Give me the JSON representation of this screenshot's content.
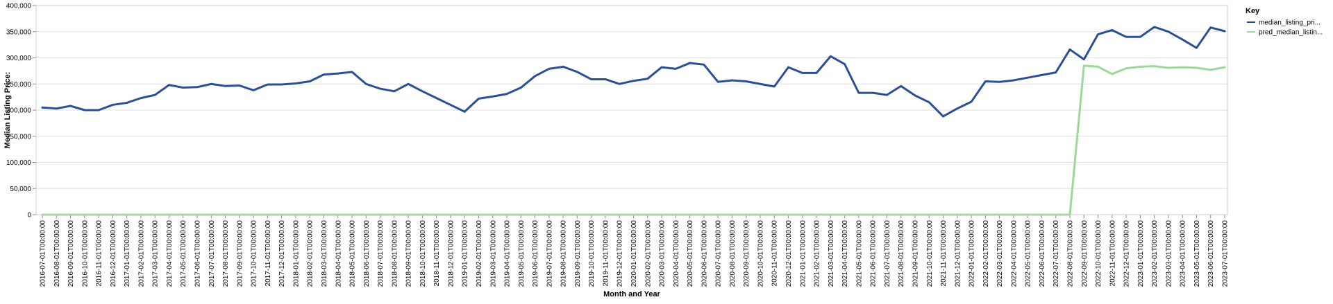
{
  "chart_data": {
    "type": "line",
    "xlabel": "Month and Year",
    "ylabel": "Median Listing Price:",
    "ylim": [
      0,
      400000
    ],
    "yticks": [
      "0",
      "50,000",
      "100,000",
      "150,000",
      "200,000",
      "250,000",
      "300,000",
      "350,000",
      "400,000"
    ],
    "ytick_values": [
      0,
      50000,
      100000,
      150000,
      200000,
      250000,
      300000,
      350000,
      400000
    ],
    "grid": true,
    "legend": {
      "title": "Key",
      "position": "top-right"
    },
    "categories": [
      "2016-07-01T00:00:00",
      "2016-08-01T00:00:00",
      "2016-09-01T00:00:00",
      "2016-10-01T00:00:00",
      "2016-11-01T00:00:00",
      "2016-12-01T00:00:00",
      "2017-01-01T00:00:00",
      "2017-02-01T00:00:00",
      "2017-03-01T00:00:00",
      "2017-04-01T00:00:00",
      "2017-05-01T00:00:00",
      "2017-06-01T00:00:00",
      "2017-07-01T00:00:00",
      "2017-08-01T00:00:00",
      "2017-09-01T00:00:00",
      "2017-10-01T00:00:00",
      "2017-11-01T00:00:00",
      "2017-12-01T00:00:00",
      "2018-01-01T00:00:00",
      "2018-02-01T00:00:00",
      "2018-03-01T00:00:00",
      "2018-04-01T00:00:00",
      "2018-05-01T00:00:00",
      "2018-06-01T00:00:00",
      "2018-07-01T00:00:00",
      "2018-08-01T00:00:00",
      "2018-09-01T00:00:00",
      "2018-10-01T00:00:00",
      "2018-11-01T00:00:00",
      "2018-12-01T00:00:00",
      "2019-01-01T00:00:00",
      "2019-02-01T00:00:00",
      "2019-03-01T00:00:00",
      "2019-04-01T00:00:00",
      "2019-05-01T00:00:00",
      "2019-06-01T00:00:00",
      "2019-07-01T00:00:00",
      "2019-08-01T00:00:00",
      "2019-09-01T00:00:00",
      "2019-10-01T00:00:00",
      "2019-11-01T00:00:00",
      "2019-12-01T00:00:00",
      "2020-01-01T00:00:00",
      "2020-02-01T00:00:00",
      "2020-03-01T00:00:00",
      "2020-04-01T00:00:00",
      "2020-05-01T00:00:00",
      "2020-06-01T00:00:00",
      "2020-07-01T00:00:00",
      "2020-08-01T00:00:00",
      "2020-09-01T00:00:00",
      "2020-10-01T00:00:00",
      "2020-11-01T00:00:00",
      "2020-12-01T00:00:00",
      "2021-01-01T00:00:00",
      "2021-02-01T00:00:00",
      "2021-03-01T00:00:00",
      "2021-04-01T00:00:00",
      "2021-05-01T00:00:00",
      "2021-06-01T00:00:00",
      "2021-07-01T00:00:00",
      "2021-08-01T00:00:00",
      "2021-09-01T00:00:00",
      "2021-10-01T00:00:00",
      "2021-11-01T00:00:00",
      "2021-12-01T00:00:00",
      "2022-01-01T00:00:00",
      "2022-02-01T00:00:00",
      "2022-03-01T00:00:00",
      "2022-04-01T00:00:00",
      "2022-05-01T00:00:00",
      "2022-06-01T00:00:00",
      "2022-07-01T00:00:00",
      "2022-08-01T00:00:00",
      "2022-09-01T00:00:00",
      "2022-10-01T00:00:00",
      "2022-11-01T00:00:00",
      "2022-12-01T00:00:00",
      "2023-01-01T00:00:00",
      "2023-02-01T00:00:00",
      "2023-03-01T00:00:00",
      "2023-04-01T00:00:00",
      "2023-05-01T00:00:00",
      "2023-06-01T00:00:00",
      "2023-07-01T00:00:00"
    ],
    "series": [
      {
        "name": "median_listing_pri...",
        "color": "#2a4f95",
        "values": [
          205000,
          203000,
          208000,
          200000,
          200000,
          210000,
          214000,
          223000,
          229000,
          248000,
          243000,
          244000,
          250000,
          246000,
          247000,
          238000,
          249000,
          249000,
          251000,
          255000,
          268000,
          270000,
          273000,
          250000,
          241000,
          236000,
          250000,
          236000,
          223000,
          210000,
          197000,
          222000,
          226000,
          231000,
          243000,
          265000,
          279000,
          283000,
          273000,
          259000,
          259000,
          250000,
          256000,
          260000,
          282000,
          279000,
          290000,
          287000,
          254000,
          257000,
          255000,
          250000,
          245000,
          282000,
          271000,
          271000,
          303000,
          288000,
          233000,
          233000,
          229000,
          246000,
          228000,
          215000,
          188000,
          203000,
          216000,
          255000,
          254000,
          257000,
          262000,
          267000,
          272000,
          316000,
          297000,
          345000,
          353000,
          340000,
          340000,
          359000,
          350000,
          335000,
          319000,
          358000,
          351000
        ]
      },
      {
        "name": "pred_median_listin...",
        "color": "#9dd89a",
        "values": [
          0,
          0,
          0,
          0,
          0,
          0,
          0,
          0,
          0,
          0,
          0,
          0,
          0,
          0,
          0,
          0,
          0,
          0,
          0,
          0,
          0,
          0,
          0,
          0,
          0,
          0,
          0,
          0,
          0,
          0,
          0,
          0,
          0,
          0,
          0,
          0,
          0,
          0,
          0,
          0,
          0,
          0,
          0,
          0,
          0,
          0,
          0,
          0,
          0,
          0,
          0,
          0,
          0,
          0,
          0,
          0,
          0,
          0,
          0,
          0,
          0,
          0,
          0,
          0,
          0,
          0,
          0,
          0,
          0,
          0,
          0,
          0,
          0,
          0,
          285000,
          283000,
          269000,
          280000,
          283000,
          284000,
          281000,
          282000,
          281000,
          277000,
          282000
        ]
      }
    ]
  }
}
